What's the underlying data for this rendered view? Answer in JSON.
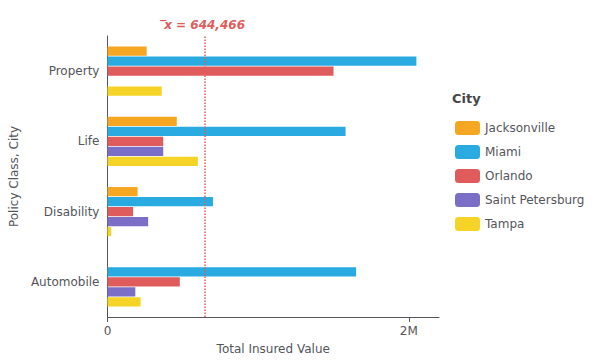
{
  "chart_data": {
    "type": "bar",
    "orientation": "horizontal",
    "xlabel": "Total Insured Value",
    "ylabel": "Policy Class, City",
    "categories": [
      "Automobile",
      "Disability",
      "Life",
      "Property"
    ],
    "series": [
      {
        "name": "Jacksonville",
        "color": "#F5A623",
        "values": [
          0,
          200000,
          460000,
          260000
        ]
      },
      {
        "name": "Miami",
        "color": "#29AAE1",
        "values": [
          1650000,
          700000,
          1580000,
          2050000
        ]
      },
      {
        "name": "Orlando",
        "color": "#E05C5C",
        "values": [
          480000,
          170000,
          370000,
          1500000
        ]
      },
      {
        "name": "Saint Petersburg",
        "color": "#7B6EC6",
        "values": [
          185000,
          270000,
          370000,
          0
        ]
      },
      {
        "name": "Tampa",
        "color": "#F5D327",
        "values": [
          220000,
          25000,
          600000,
          360000
        ]
      }
    ],
    "xlim": [
      0,
      2200000
    ],
    "xticks": [
      0,
      {
        "value": 2000000,
        "label": "2M"
      }
    ],
    "grid": false,
    "legend": "right",
    "legend_title": "City",
    "annotations": [
      {
        "x": 644466,
        "text": "̅x = 644,466",
        "color": "#E05C5C",
        "line_style": "dotted"
      }
    ]
  }
}
